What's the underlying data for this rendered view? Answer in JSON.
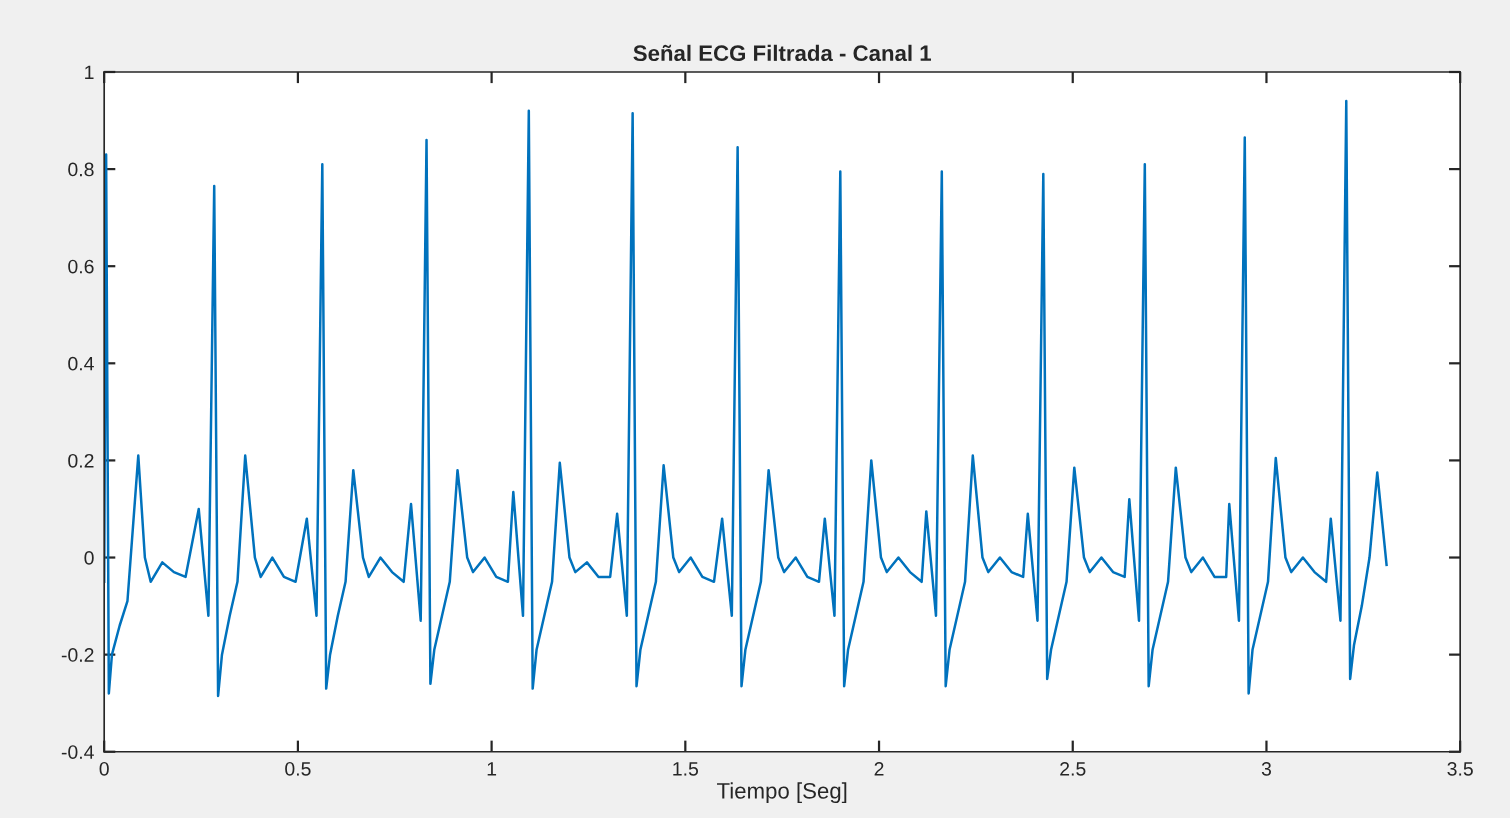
{
  "chart_data": {
    "type": "line",
    "title": "Señal ECG Filtrada - Canal 1",
    "xlabel": "Tiempo [Seg]",
    "xlim": [
      0,
      3.5
    ],
    "xticks": [
      0,
      0.5,
      1,
      1.5,
      2,
      2.5,
      3,
      3.5
    ],
    "ylim": [
      -0.4,
      1
    ],
    "yticks": [
      -0.4,
      -0.2,
      0,
      0.2,
      0.4,
      0.6,
      0.8,
      1
    ],
    "grid": false,
    "marker": "none",
    "line_style": "solid",
    "series": [
      {
        "color": "#0072bd",
        "x": [
          0,
          0.005,
          0.012,
          0.02,
          0.04,
          0.06,
          0.088,
          0.105,
          0.12,
          0.15,
          0.18,
          0.21,
          0.244,
          0.269,
          0.284,
          0.294,
          0.304,
          0.324,
          0.344,
          0.364,
          0.389,
          0.404,
          0.434,
          0.464,
          0.494,
          0.523,
          0.548,
          0.563,
          0.573,
          0.583,
          0.603,
          0.623,
          0.643,
          0.668,
          0.683,
          0.713,
          0.743,
          0.773,
          0.792,
          0.817,
          0.832,
          0.842,
          0.852,
          0.872,
          0.892,
          0.912,
          0.937,
          0.952,
          0.982,
          1.012,
          1.042,
          1.056,
          1.081,
          1.096,
          1.106,
          1.116,
          1.136,
          1.156,
          1.176,
          1.201,
          1.216,
          1.246,
          1.276,
          1.306,
          1.324,
          1.349,
          1.364,
          1.374,
          1.384,
          1.404,
          1.424,
          1.444,
          1.469,
          1.484,
          1.514,
          1.544,
          1.574,
          1.595,
          1.62,
          1.635,
          1.645,
          1.655,
          1.675,
          1.695,
          1.715,
          1.74,
          1.755,
          1.785,
          1.815,
          1.845,
          1.86,
          1.885,
          1.9,
          1.91,
          1.92,
          1.94,
          1.96,
          1.98,
          2.005,
          2.02,
          2.05,
          2.08,
          2.11,
          2.122,
          2.147,
          2.162,
          2.172,
          2.182,
          2.202,
          2.222,
          2.242,
          2.267,
          2.282,
          2.312,
          2.342,
          2.372,
          2.384,
          2.409,
          2.424,
          2.434,
          2.444,
          2.464,
          2.484,
          2.504,
          2.529,
          2.544,
          2.574,
          2.604,
          2.634,
          2.646,
          2.671,
          2.686,
          2.696,
          2.706,
          2.726,
          2.746,
          2.766,
          2.791,
          2.806,
          2.836,
          2.866,
          2.896,
          2.904,
          2.929,
          2.944,
          2.954,
          2.964,
          2.984,
          3.004,
          3.024,
          3.049,
          3.064,
          3.094,
          3.124,
          3.154,
          3.166,
          3.191,
          3.206,
          3.216,
          3.226,
          3.246,
          3.266,
          3.286,
          3.31
        ],
        "values": [
          -0.05,
          0.83,
          -0.28,
          -0.2,
          -0.14,
          -0.09,
          0.21,
          0.0,
          -0.05,
          -0.01,
          -0.03,
          -0.04,
          0.1,
          -0.12,
          0.765,
          -0.285,
          -0.2,
          -0.12,
          -0.05,
          0.21,
          0.0,
          -0.04,
          0.0,
          -0.04,
          -0.05,
          0.08,
          -0.12,
          0.81,
          -0.27,
          -0.2,
          -0.12,
          -0.05,
          0.18,
          0.0,
          -0.04,
          0.0,
          -0.03,
          -0.05,
          0.11,
          -0.13,
          0.86,
          -0.26,
          -0.19,
          -0.12,
          -0.05,
          0.18,
          0.0,
          -0.03,
          0.0,
          -0.04,
          -0.05,
          0.135,
          -0.12,
          0.92,
          -0.27,
          -0.19,
          -0.12,
          -0.05,
          0.195,
          0.0,
          -0.03,
          -0.01,
          -0.04,
          -0.04,
          0.09,
          -0.12,
          0.915,
          -0.265,
          -0.19,
          -0.12,
          -0.05,
          0.19,
          0.0,
          -0.03,
          0.0,
          -0.04,
          -0.05,
          0.08,
          -0.12,
          0.845,
          -0.265,
          -0.19,
          -0.12,
          -0.05,
          0.18,
          0.0,
          -0.03,
          0.0,
          -0.04,
          -0.05,
          0.08,
          -0.12,
          0.795,
          -0.265,
          -0.19,
          -0.12,
          -0.05,
          0.2,
          0.0,
          -0.03,
          0.0,
          -0.03,
          -0.05,
          0.095,
          -0.12,
          0.795,
          -0.265,
          -0.19,
          -0.12,
          -0.05,
          0.21,
          0.0,
          -0.03,
          0.0,
          -0.03,
          -0.04,
          0.09,
          -0.13,
          0.79,
          -0.25,
          -0.19,
          -0.12,
          -0.05,
          0.185,
          0.0,
          -0.03,
          0.0,
          -0.03,
          -0.04,
          0.12,
          -0.13,
          0.81,
          -0.265,
          -0.19,
          -0.12,
          -0.05,
          0.185,
          0.0,
          -0.03,
          0.0,
          -0.04,
          -0.04,
          0.11,
          -0.13,
          0.865,
          -0.28,
          -0.19,
          -0.12,
          -0.05,
          0.205,
          0.0,
          -0.03,
          0.0,
          -0.03,
          -0.05,
          0.08,
          -0.13,
          0.94,
          -0.25,
          -0.18,
          -0.1,
          0.0,
          0.175,
          -0.015
        ]
      }
    ]
  }
}
